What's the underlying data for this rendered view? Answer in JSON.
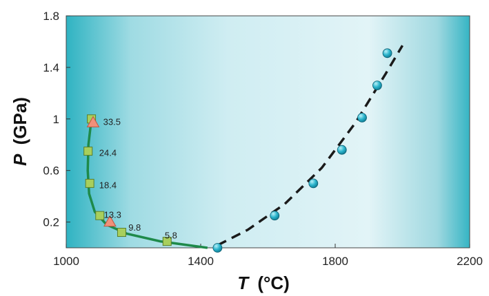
{
  "chart_data": {
    "type": "scatter",
    "xlabel_var": "T",
    "xlabel_unit": "(°C)",
    "ylabel_var": "P",
    "ylabel_unit": "(GPa)",
    "xlim": [
      1000,
      2200
    ],
    "ylim": [
      0,
      1.8
    ],
    "xticks": [
      1000,
      1400,
      1800,
      2200
    ],
    "xtick_labels": [
      "1000",
      "1400",
      "1800",
      "2200"
    ],
    "yticks": [
      0.2,
      0.6,
      1.0,
      1.4,
      1.8
    ],
    "ytick_labels": [
      "0.2",
      "0.6",
      "1",
      "1.4",
      "1.8"
    ],
    "grid": false,
    "colors": {
      "circle": "#2ab4cc",
      "square": "#a8cf5c",
      "triangle": "#f0907a",
      "solid_curve": "#1e8a4a",
      "dashed_curve": "#1a1a1a"
    },
    "series": [
      {
        "marker": "circle",
        "points": [
          {
            "x": 1450,
            "y": 0.0
          },
          {
            "x": 1620,
            "y": 0.25
          },
          {
            "x": 1735,
            "y": 0.5
          },
          {
            "x": 1820,
            "y": 0.76
          },
          {
            "x": 1880,
            "y": 1.01
          },
          {
            "x": 1925,
            "y": 1.26
          },
          {
            "x": 1955,
            "y": 1.51
          }
        ]
      },
      {
        "marker": "square",
        "points": [
          {
            "x": 1075,
            "y": 1.0
          },
          {
            "x": 1065,
            "y": 0.75
          },
          {
            "x": 1070,
            "y": 0.5
          },
          {
            "x": 1100,
            "y": 0.25
          },
          {
            "x": 1165,
            "y": 0.12
          },
          {
            "x": 1300,
            "y": 0.05
          }
        ]
      },
      {
        "marker": "triangle",
        "points": [
          {
            "x": 1080,
            "y": 0.97
          },
          {
            "x": 1130,
            "y": 0.2
          }
        ]
      }
    ],
    "curves": [
      {
        "style": "solid",
        "points": [
          [
            1075,
            1.0
          ],
          [
            1066,
            0.8
          ],
          [
            1064,
            0.6
          ],
          [
            1068,
            0.42
          ],
          [
            1085,
            0.28
          ],
          [
            1120,
            0.18
          ],
          [
            1180,
            0.11
          ],
          [
            1280,
            0.05
          ],
          [
            1420,
            0.0
          ]
        ]
      },
      {
        "style": "dashed",
        "points": [
          [
            1450,
            0.02
          ],
          [
            1540,
            0.14
          ],
          [
            1650,
            0.34
          ],
          [
            1760,
            0.62
          ],
          [
            1860,
            0.97
          ],
          [
            1950,
            1.35
          ],
          [
            2000,
            1.57
          ]
        ]
      }
    ],
    "annotations": [
      {
        "text": "33.5",
        "x": 1110,
        "y": 0.98
      },
      {
        "text": "24.4",
        "x": 1098,
        "y": 0.74
      },
      {
        "text": "18.4",
        "x": 1098,
        "y": 0.49
      },
      {
        "text": "13.3",
        "x": 1112,
        "y": 0.26
      },
      {
        "text": "9.8",
        "x": 1185,
        "y": 0.16
      },
      {
        "text": "5.8",
        "x": 1293,
        "y": 0.1
      }
    ]
  }
}
